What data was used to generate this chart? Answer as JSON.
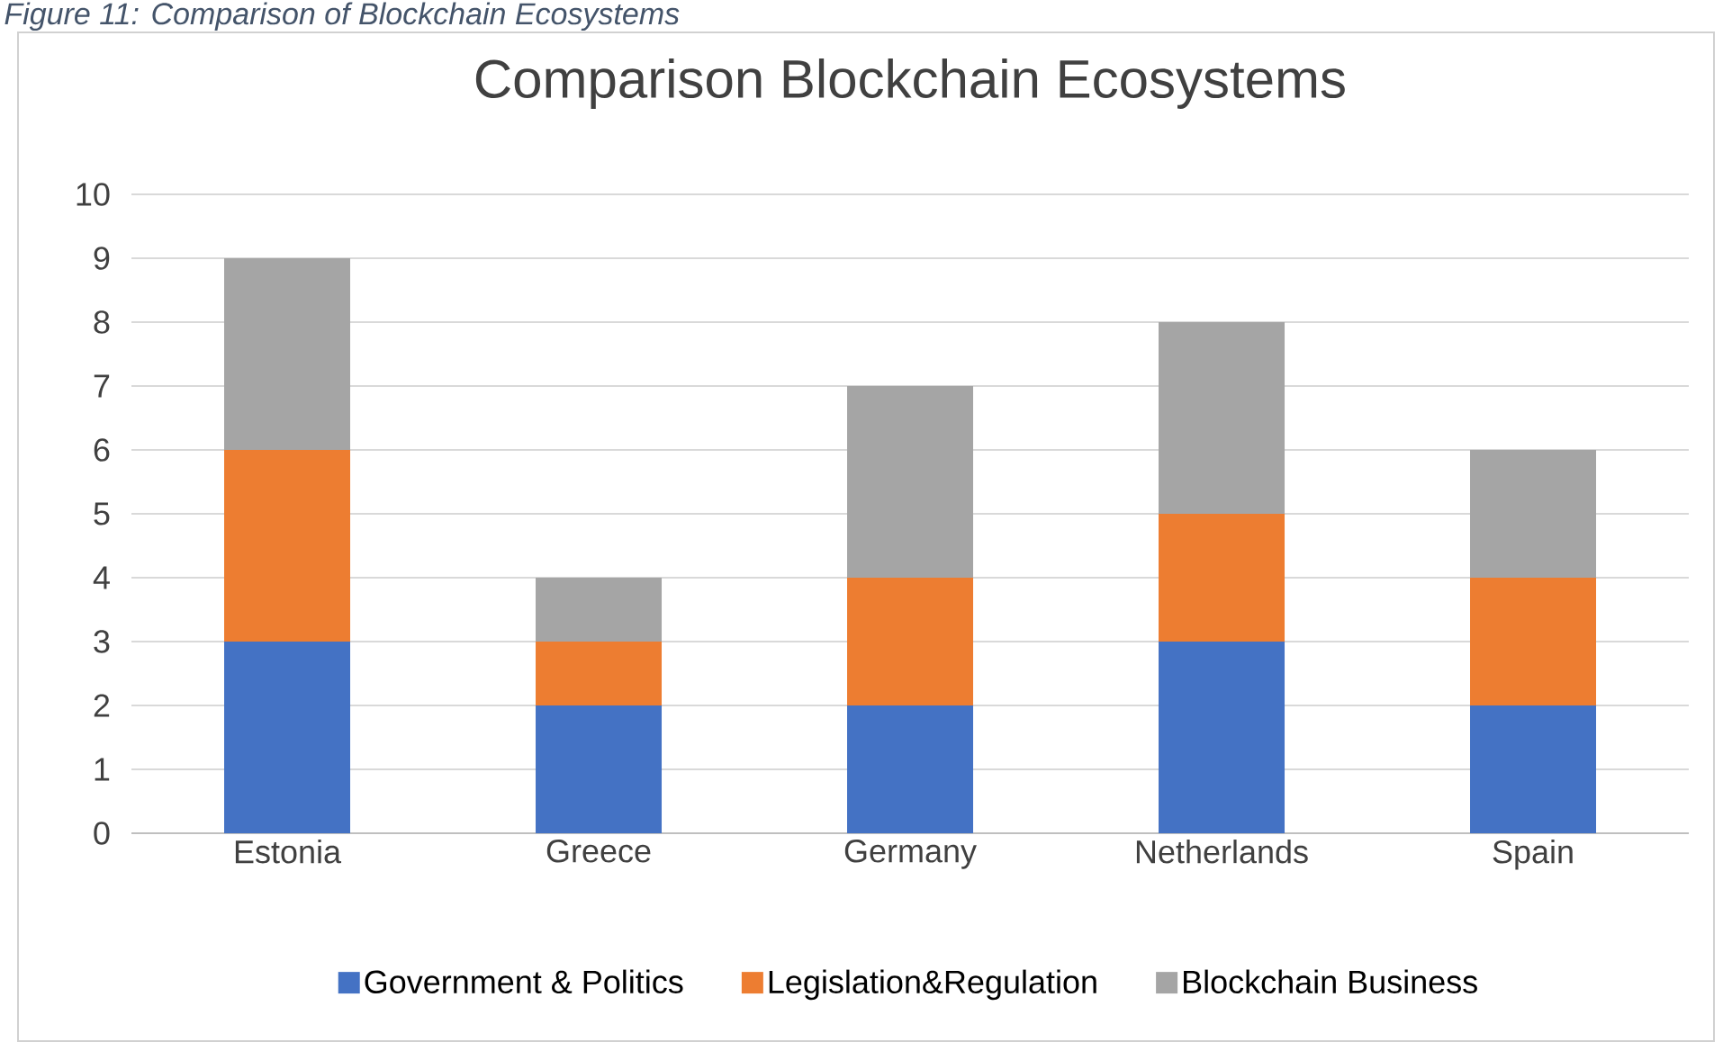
{
  "chart_data": {
    "type": "bar",
    "stacked": true,
    "title": "Comparison Blockchain Ecosystems",
    "annotations": [
      "Figure 11: Comparison of Blockchain Ecosystems"
    ],
    "categories": [
      "Estonia",
      "Greece",
      "Germany",
      "Netherlands",
      "Spain"
    ],
    "series": [
      {
        "name": "Government & Politics",
        "color": "#4472c4",
        "values": [
          3,
          2,
          2,
          3,
          2
        ]
      },
      {
        "name": "Legislation&Regulation",
        "color": "#ed7d31",
        "values": [
          3,
          1,
          2,
          2,
          2
        ]
      },
      {
        "name": "Blockchain Business",
        "color": "#a5a5a5",
        "values": [
          3,
          1,
          3,
          3,
          2
        ]
      }
    ],
    "ylim": [
      0,
      10
    ],
    "yticks": [
      0,
      1,
      2,
      3,
      4,
      5,
      6,
      7,
      8,
      9,
      10
    ],
    "grid": "y",
    "legend": "bottom"
  }
}
